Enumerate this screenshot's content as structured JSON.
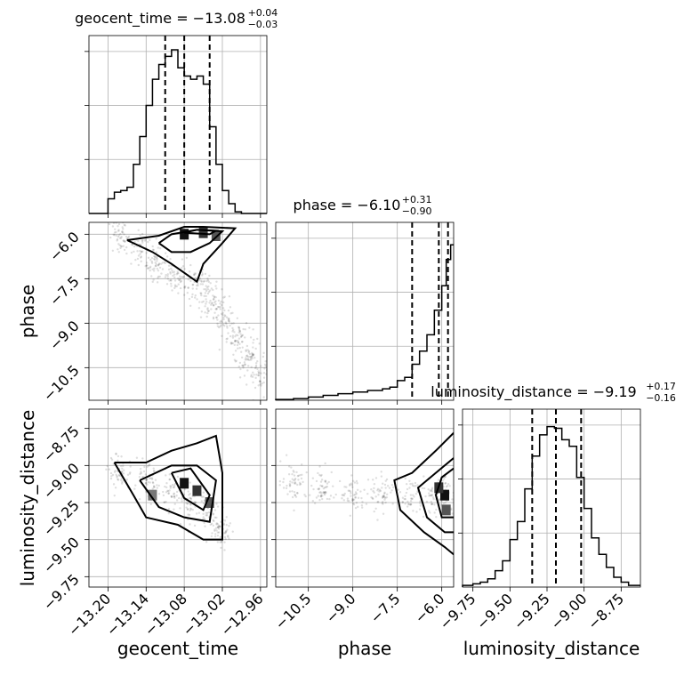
{
  "chart_data": {
    "type": "scatter",
    "variables": [
      "geocent_time",
      "phase",
      "luminosity_distance"
    ],
    "titles": [
      {
        "param": "geocent_time",
        "median": "−13.08",
        "upper": "+0.04",
        "lower": "−0.03"
      },
      {
        "param": "phase",
        "median": "−6.10",
        "upper": "+0.31",
        "lower": "−0.90"
      },
      {
        "param": "luminosity_distance",
        "median": "−9.19",
        "upper": "+0.17",
        "lower": "−0.16"
      }
    ],
    "ranges": {
      "geocent_time": [
        -13.23,
        -12.95
      ],
      "phase": [
        -11.6,
        -5.6
      ],
      "luminosity_distance": [
        -9.82,
        -8.62
      ]
    },
    "ticks": {
      "geocent_time": [
        "−13.20",
        "−13.14",
        "−13.08",
        "−13.02",
        "−12.96"
      ],
      "phase": [
        "−10.5",
        "−9.0",
        "−7.5",
        "−6.0"
      ],
      "luminosity_distance": [
        "−9.75",
        "−9.50",
        "−9.25",
        "−9.00",
        "−8.75"
      ]
    },
    "quantiles": {
      "geocent_time": [
        -13.11,
        -13.08,
        -13.04
      ],
      "phase": [
        -7.0,
        -6.1,
        -5.79
      ],
      "luminosity_distance": [
        -9.35,
        -9.19,
        -9.02
      ]
    },
    "histograms": {
      "geocent_time": {
        "edges": [
          -13.23,
          -13.2,
          -13.19,
          -13.18,
          -13.17,
          -13.16,
          -13.15,
          -13.14,
          -13.13,
          -13.12,
          -13.11,
          -13.1,
          -13.09,
          -13.08,
          -13.07,
          -13.06,
          -13.05,
          -13.04,
          -13.03,
          -13.02,
          -13.01,
          -13.0,
          -12.99,
          -12.95
        ],
        "counts": [
          0,
          0.09,
          0.13,
          0.14,
          0.16,
          0.3,
          0.47,
          0.66,
          0.82,
          0.91,
          0.96,
          1.0,
          0.89,
          0.84,
          0.82,
          0.84,
          0.79,
          0.53,
          0.3,
          0.14,
          0.06,
          0.01,
          0
        ]
      },
      "phase": {
        "edges": [
          -11.6,
          -11.0,
          -10.5,
          -10.0,
          -9.5,
          -9.0,
          -8.5,
          -8.0,
          -7.75,
          -7.5,
          -7.25,
          -7.0,
          -6.75,
          -6.5,
          -6.25,
          -6.0,
          -5.85,
          -5.7,
          -5.6
        ],
        "counts": [
          0.005,
          0.01,
          0.02,
          0.03,
          0.04,
          0.05,
          0.06,
          0.07,
          0.08,
          0.12,
          0.14,
          0.22,
          0.3,
          0.4,
          0.55,
          0.7,
          0.86,
          0.95
        ]
      },
      "luminosity_distance": {
        "edges": [
          -9.82,
          -9.75,
          -9.7,
          -9.65,
          -9.6,
          -9.55,
          -9.5,
          -9.45,
          -9.4,
          -9.35,
          -9.3,
          -9.25,
          -9.2,
          -9.15,
          -9.1,
          -9.05,
          -9.0,
          -8.95,
          -8.9,
          -8.85,
          -8.8,
          -8.75,
          -8.7,
          -8.62
        ],
        "counts": [
          0.01,
          0.02,
          0.03,
          0.05,
          0.1,
          0.16,
          0.29,
          0.4,
          0.6,
          0.8,
          0.93,
          0.98,
          0.97,
          0.9,
          0.86,
          0.67,
          0.48,
          0.3,
          0.2,
          0.12,
          0.06,
          0.03,
          0.01
        ]
      }
    },
    "scatter": {
      "phase_vs_geocent_time": {
        "ridge": [
          [
            -13.18,
            -6.1
          ],
          [
            -13.15,
            -6.5
          ],
          [
            -13.12,
            -7.0
          ],
          [
            -13.09,
            -7.4
          ],
          [
            -13.06,
            -7.7
          ],
          [
            -13.04,
            -8.2
          ],
          [
            -13.02,
            -8.8
          ],
          [
            -13.0,
            -9.5
          ],
          [
            -12.98,
            -10.1
          ],
          [
            -12.96,
            -10.7
          ]
        ],
        "core": [
          [
            -13.08,
            -6.0
          ],
          [
            -13.05,
            -5.95
          ],
          [
            -13.03,
            -6.05
          ]
        ],
        "contours": [
          [
            [
              -13.17,
              -6.2
            ],
            [
              -13.12,
              -6.05
            ],
            [
              -13.08,
              -5.75
            ],
            [
              -13.05,
              -5.75
            ],
            [
              -13.0,
              -5.8
            ],
            [
              -13.02,
              -6.3
            ],
            [
              -13.05,
              -7.0
            ],
            [
              -13.06,
              -7.6
            ],
            [
              -13.1,
              -7.0
            ],
            [
              -13.13,
              -6.6
            ],
            [
              -13.17,
              -6.2
            ]
          ],
          [
            [
              -13.12,
              -6.3
            ],
            [
              -13.1,
              -6.0
            ],
            [
              -13.06,
              -5.85
            ],
            [
              -13.02,
              -5.9
            ],
            [
              -13.04,
              -6.3
            ],
            [
              -13.07,
              -6.6
            ],
            [
              -13.1,
              -6.6
            ],
            [
              -13.12,
              -6.3
            ]
          ],
          [
            [
              -13.08,
              -5.95
            ],
            [
              -13.06,
              -5.85
            ],
            [
              -13.03,
              -5.88
            ],
            [
              -13.04,
              -6.0
            ],
            [
              -13.08,
              -5.95
            ]
          ]
        ]
      },
      "luminosity_distance_vs_geocent_time": {
        "ridge": [
          [
            -13.18,
            -9.05
          ],
          [
            -13.14,
            -9.12
          ],
          [
            -13.1,
            -9.18
          ],
          [
            -13.07,
            -9.25
          ],
          [
            -13.04,
            -9.3
          ],
          [
            -13.02,
            -9.45
          ]
        ],
        "core": [
          [
            -13.08,
            -9.12
          ],
          [
            -13.06,
            -9.17
          ],
          [
            -13.04,
            -9.25
          ],
          [
            -13.13,
            -9.2
          ]
        ],
        "contours": [
          [
            [
              -13.19,
              -8.98
            ],
            [
              -13.14,
              -8.98
            ],
            [
              -13.1,
              -8.9
            ],
            [
              -13.06,
              -8.85
            ],
            [
              -13.03,
              -8.8
            ],
            [
              -13.02,
              -9.05
            ],
            [
              -13.02,
              -9.5
            ],
            [
              -13.05,
              -9.5
            ],
            [
              -13.09,
              -9.4
            ],
            [
              -13.14,
              -9.35
            ],
            [
              -13.16,
              -9.2
            ],
            [
              -13.19,
              -8.98
            ]
          ],
          [
            [
              -13.15,
              -9.1
            ],
            [
              -13.1,
              -9.0
            ],
            [
              -13.06,
              -9.0
            ],
            [
              -13.03,
              -9.1
            ],
            [
              -13.04,
              -9.38
            ],
            [
              -13.08,
              -9.35
            ],
            [
              -13.12,
              -9.28
            ],
            [
              -13.15,
              -9.1
            ]
          ],
          [
            [
              -13.1,
              -9.05
            ],
            [
              -13.07,
              -9.02
            ],
            [
              -13.04,
              -9.2
            ],
            [
              -13.05,
              -9.3
            ],
            [
              -13.08,
              -9.22
            ],
            [
              -13.1,
              -9.05
            ]
          ]
        ]
      },
      "luminosity_distance_vs_phase": {
        "ridge": [
          [
            -11.0,
            -9.1
          ],
          [
            -10.0,
            -9.15
          ],
          [
            -9.0,
            -9.2
          ],
          [
            -8.0,
            -9.2
          ],
          [
            -7.0,
            -9.2
          ],
          [
            -6.2,
            -9.2
          ],
          [
            -5.8,
            -9.2
          ]
        ],
        "core": [
          [
            -5.9,
            -9.2
          ],
          [
            -6.1,
            -9.15
          ],
          [
            -5.85,
            -9.3
          ]
        ],
        "contours": [
          [
            [
              -5.6,
              -8.78
            ],
            [
              -6.2,
              -8.9
            ],
            [
              -7.0,
              -9.05
            ],
            [
              -7.6,
              -9.1
            ],
            [
              -7.4,
              -9.3
            ],
            [
              -6.6,
              -9.45
            ],
            [
              -5.9,
              -9.55
            ],
            [
              -5.6,
              -9.6
            ]
          ],
          [
            [
              -5.6,
              -8.95
            ],
            [
              -6.2,
              -9.05
            ],
            [
              -6.8,
              -9.15
            ],
            [
              -6.5,
              -9.35
            ],
            [
              -5.9,
              -9.45
            ],
            [
              -5.6,
              -9.45
            ]
          ],
          [
            [
              -5.6,
              -9.02
            ],
            [
              -6.0,
              -9.08
            ],
            [
              -6.2,
              -9.2
            ],
            [
              -6.0,
              -9.35
            ],
            [
              -5.6,
              -9.35
            ]
          ]
        ]
      }
    },
    "grid": true,
    "legend": "none"
  }
}
